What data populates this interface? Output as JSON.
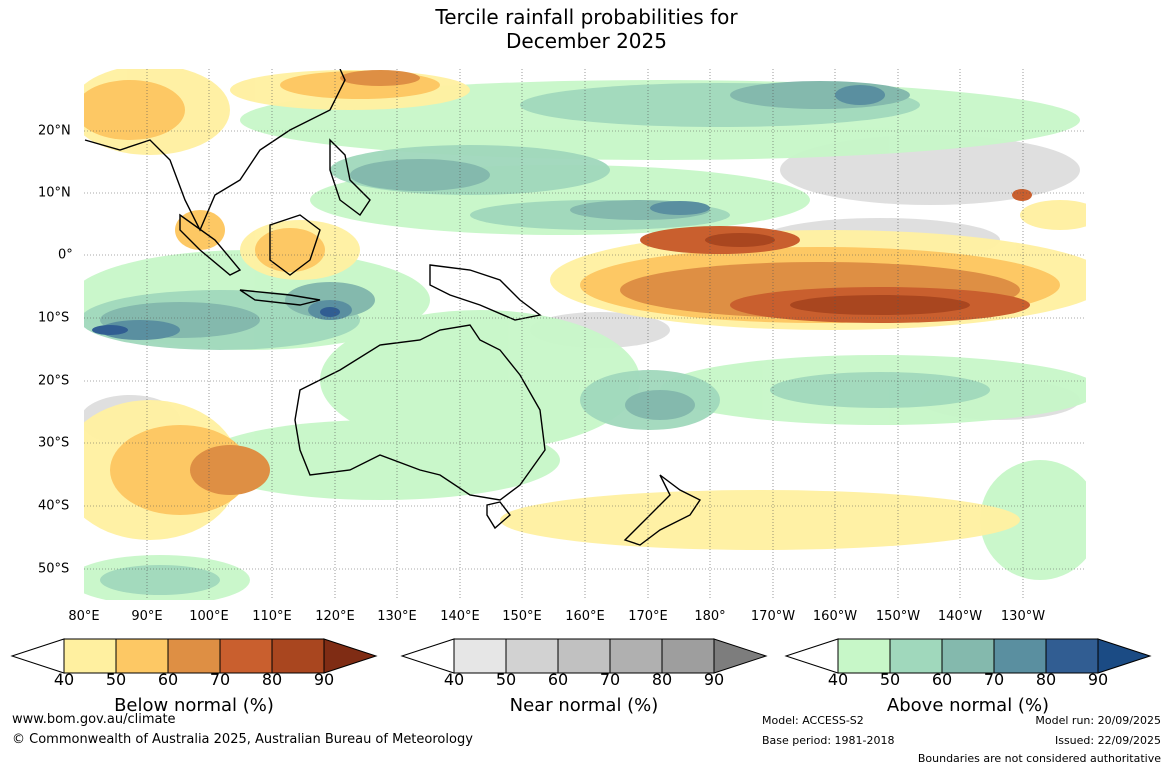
{
  "title": {
    "line1": "Tercile rainfall probabilities for",
    "line2": "December 2025"
  },
  "map": {
    "region": "Indo-Pacific and Australia",
    "longitude_labels": [
      "80°E",
      "90°E",
      "100°E",
      "110°E",
      "120°E",
      "130°E",
      "140°E",
      "150°E",
      "160°E",
      "170°E",
      "180°",
      "170°W",
      "160°W",
      "150°W",
      "140°W",
      "130°W"
    ],
    "latitude_labels": [
      "20°N",
      "10°N",
      "0°",
      "10°S",
      "20°S",
      "30°S",
      "40°S",
      "50°S"
    ]
  },
  "legends": [
    {
      "label": "Below normal (%)",
      "ticks": [
        "40",
        "50",
        "60",
        "70",
        "80",
        "90"
      ],
      "colors": [
        "#fff0a0",
        "#fdc864",
        "#de8f44",
        "#c95f2e",
        "#a9461f",
        "#7f2c14"
      ]
    },
    {
      "label": "Near normal (%)",
      "ticks": [
        "40",
        "50",
        "60",
        "70",
        "80",
        "90"
      ],
      "colors": [
        "#e6e6e6",
        "#d2d2d2",
        "#c1c1c1",
        "#b0b0b0",
        "#9e9e9e",
        "#7d7d7d"
      ]
    },
    {
      "label": "Above normal (%)",
      "ticks": [
        "40",
        "50",
        "60",
        "70",
        "80",
        "90"
      ],
      "colors": [
        "#c7f7c8",
        "#a0d8bc",
        "#84b9ad",
        "#5a8fa0",
        "#315d92",
        "#1b4b84"
      ]
    }
  ],
  "footer": {
    "website": "www.bom.gov.au/climate",
    "copyright": "© Commonwealth of Australia 2025, Australian Bureau of Meteorology",
    "model": "Model: ACCESS-S2",
    "base_period": "Base period: 1981-2018",
    "model_run": "Model run: 20/09/2025",
    "issued": "Issued: 22/09/2025",
    "disclaimer": "Boundaries are not considered authoritative"
  }
}
